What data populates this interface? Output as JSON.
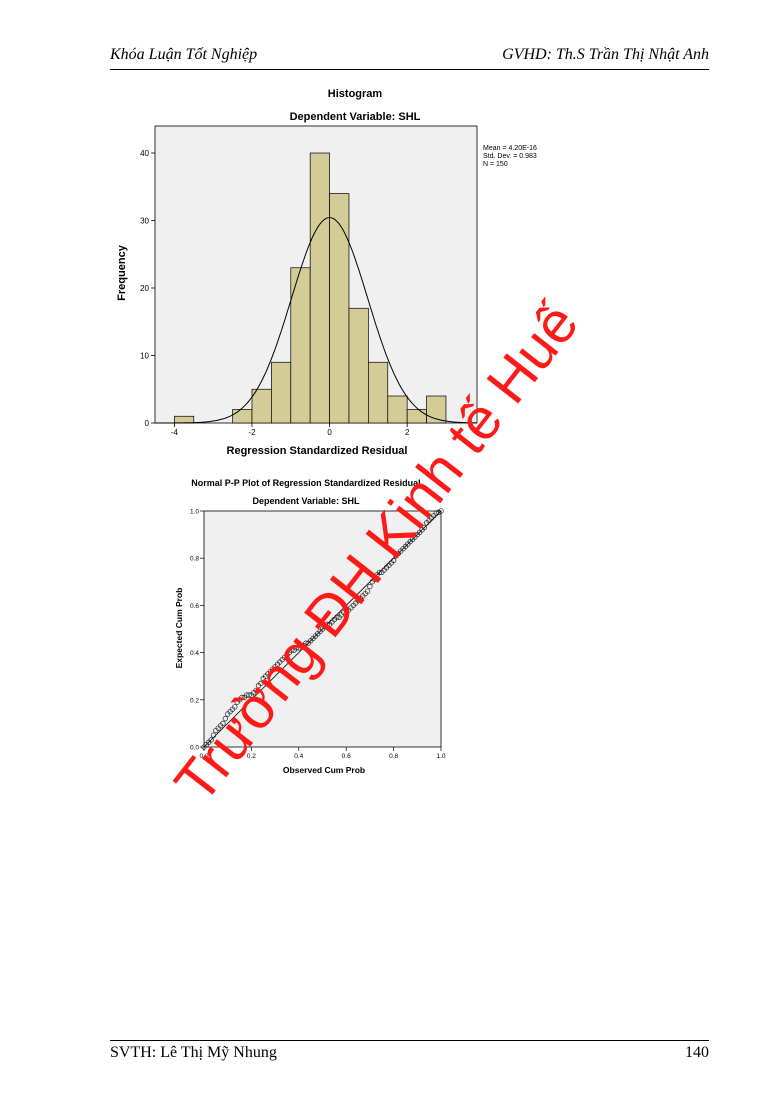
{
  "header": {
    "left": "Khóa Luận Tốt Nghiệp",
    "right": "GVHD:  Th.S Trần Thị Nhật Anh"
  },
  "footer": {
    "left": "SVTH: Lê Thị Mỹ Nhung",
    "page_number": "140"
  },
  "watermark": {
    "text": "Trường ĐH Kinh tế Huế",
    "color": "#ff1a1a"
  },
  "chart_data": [
    {
      "type": "bar",
      "title": "Histogram",
      "subtitle": "Dependent Variable: SHL",
      "xlabel": "Regression Standardized Residual",
      "ylabel": "Frequency",
      "xlim": [
        -4.5,
        3.8
      ],
      "ylim": [
        0,
        44
      ],
      "x_ticks": [
        -4,
        -2,
        0,
        2
      ],
      "y_ticks": [
        0,
        10,
        20,
        30,
        40
      ],
      "bin_width": 0.5,
      "bins": [
        {
          "x0": -4.0,
          "count": 1
        },
        {
          "x0": -2.5,
          "count": 2
        },
        {
          "x0": -2.0,
          "count": 5
        },
        {
          "x0": -1.5,
          "count": 9
        },
        {
          "x0": -1.0,
          "count": 23
        },
        {
          "x0": -0.5,
          "count": 40
        },
        {
          "x0": 0.0,
          "count": 34
        },
        {
          "x0": 0.5,
          "count": 17
        },
        {
          "x0": 1.0,
          "count": 9
        },
        {
          "x0": 1.5,
          "count": 4
        },
        {
          "x0": 2.0,
          "count": 2
        },
        {
          "x0": 2.5,
          "count": 4
        }
      ],
      "normal_curve": {
        "mean": 0,
        "sd": 0.983,
        "n": 150
      },
      "stats": [
        "Mean = 4.20E-16",
        "Std. Dev. = 0.983",
        "N = 150"
      ],
      "bar_color": "#d3cc96",
      "bar_edge": "#000000",
      "plot_bg": "#f0f0f0"
    },
    {
      "type": "scatter",
      "title": "Normal P-P Plot of Regression Standardized Residual",
      "subtitle": "Dependent Variable: SHL",
      "xlabel": "Observed Cum Prob",
      "ylabel": "Expected Cum Prob",
      "xlim": [
        0,
        1
      ],
      "ylim": [
        0,
        1
      ],
      "x_ticks": [
        "0.0",
        "0.2",
        "0.4",
        "0.6",
        "0.8",
        "1.0"
      ],
      "y_ticks": [
        "0.0",
        "0.2",
        "0.4",
        "0.6",
        "0.8",
        "1.0"
      ],
      "reference_line": [
        [
          0,
          0
        ],
        [
          1,
          1
        ]
      ],
      "points": [
        [
          0.0,
          0.0
        ],
        [
          0.01,
          0.01
        ],
        [
          0.02,
          0.02
        ],
        [
          0.03,
          0.03
        ],
        [
          0.04,
          0.05
        ],
        [
          0.05,
          0.07
        ],
        [
          0.06,
          0.08
        ],
        [
          0.07,
          0.09
        ],
        [
          0.08,
          0.1
        ],
        [
          0.09,
          0.12
        ],
        [
          0.1,
          0.14
        ],
        [
          0.11,
          0.15
        ],
        [
          0.12,
          0.16
        ],
        [
          0.13,
          0.17
        ],
        [
          0.14,
          0.19
        ],
        [
          0.15,
          0.2
        ],
        [
          0.16,
          0.21
        ],
        [
          0.17,
          0.21
        ],
        [
          0.18,
          0.22
        ],
        [
          0.19,
          0.22
        ],
        [
          0.2,
          0.22
        ],
        [
          0.21,
          0.23
        ],
        [
          0.22,
          0.24
        ],
        [
          0.23,
          0.26
        ],
        [
          0.24,
          0.27
        ],
        [
          0.25,
          0.29
        ],
        [
          0.26,
          0.3
        ],
        [
          0.27,
          0.31
        ],
        [
          0.28,
          0.32
        ],
        [
          0.29,
          0.33
        ],
        [
          0.3,
          0.34
        ],
        [
          0.31,
          0.35
        ],
        [
          0.32,
          0.36
        ],
        [
          0.33,
          0.37
        ],
        [
          0.34,
          0.38
        ],
        [
          0.35,
          0.39
        ],
        [
          0.36,
          0.4
        ],
        [
          0.37,
          0.41
        ],
        [
          0.38,
          0.41
        ],
        [
          0.39,
          0.42
        ],
        [
          0.4,
          0.42
        ],
        [
          0.41,
          0.43
        ],
        [
          0.42,
          0.43
        ],
        [
          0.43,
          0.44
        ],
        [
          0.44,
          0.44
        ],
        [
          0.45,
          0.45
        ],
        [
          0.46,
          0.46
        ],
        [
          0.47,
          0.47
        ],
        [
          0.48,
          0.48
        ],
        [
          0.49,
          0.49
        ],
        [
          0.5,
          0.5
        ],
        [
          0.51,
          0.51
        ],
        [
          0.52,
          0.52
        ],
        [
          0.53,
          0.52
        ],
        [
          0.54,
          0.53
        ],
        [
          0.55,
          0.54
        ],
        [
          0.56,
          0.55
        ],
        [
          0.57,
          0.55
        ],
        [
          0.58,
          0.56
        ],
        [
          0.59,
          0.57
        ],
        [
          0.6,
          0.58
        ],
        [
          0.61,
          0.58
        ],
        [
          0.62,
          0.59
        ],
        [
          0.63,
          0.6
        ],
        [
          0.64,
          0.61
        ],
        [
          0.65,
          0.62
        ],
        [
          0.66,
          0.63
        ],
        [
          0.67,
          0.64
        ],
        [
          0.68,
          0.65
        ],
        [
          0.69,
          0.66
        ],
        [
          0.7,
          0.68
        ],
        [
          0.71,
          0.7
        ],
        [
          0.72,
          0.71
        ],
        [
          0.73,
          0.73
        ],
        [
          0.74,
          0.74
        ],
        [
          0.75,
          0.74
        ],
        [
          0.76,
          0.75
        ],
        [
          0.77,
          0.76
        ],
        [
          0.78,
          0.77
        ],
        [
          0.79,
          0.78
        ],
        [
          0.8,
          0.79
        ],
        [
          0.81,
          0.81
        ],
        [
          0.82,
          0.82
        ],
        [
          0.83,
          0.83
        ],
        [
          0.84,
          0.84
        ],
        [
          0.85,
          0.85
        ],
        [
          0.86,
          0.86
        ],
        [
          0.87,
          0.87
        ],
        [
          0.88,
          0.88
        ],
        [
          0.89,
          0.89
        ],
        [
          0.9,
          0.9
        ],
        [
          0.91,
          0.91
        ],
        [
          0.92,
          0.92
        ],
        [
          0.93,
          0.93
        ],
        [
          0.94,
          0.95
        ],
        [
          0.95,
          0.96
        ],
        [
          0.96,
          0.97
        ],
        [
          0.97,
          0.98
        ],
        [
          0.98,
          0.99
        ],
        [
          0.99,
          0.995
        ],
        [
          1.0,
          1.0
        ]
      ],
      "plot_bg": "#f0f0f0"
    }
  ]
}
